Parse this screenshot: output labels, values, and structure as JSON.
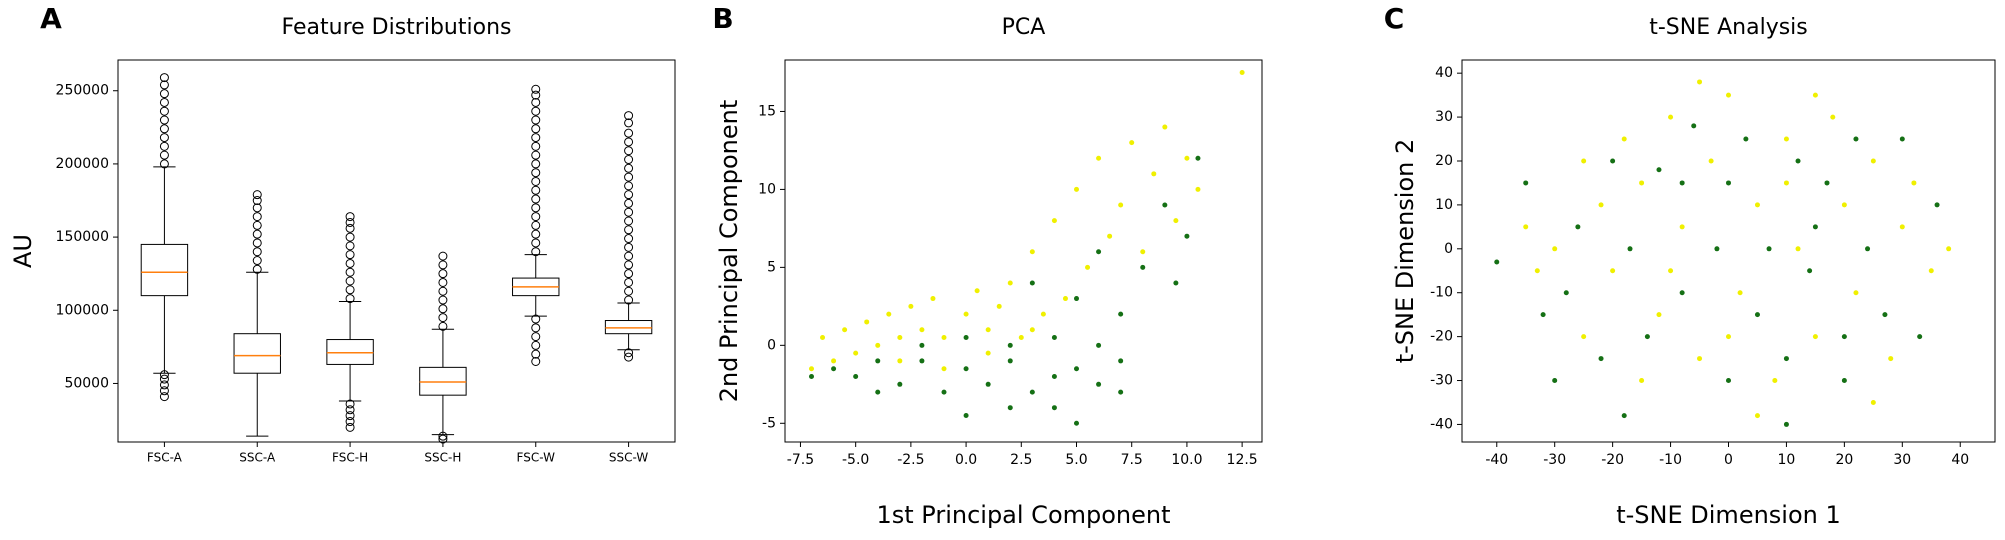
{
  "chart_data": [
    {
      "type": "box",
      "panel_label": "A",
      "title": "Feature Distributions",
      "y_label": "AU",
      "categories": [
        "FSC-A",
        "SSC-A",
        "FSC-H",
        "SSC-H",
        "FSC-W",
        "SSC-W"
      ],
      "boxes": [
        {
          "whisker_low": 57000,
          "q1": 110000,
          "median": 126000,
          "q3": 145000,
          "whisker_high": 198000,
          "fliers": [
            200000,
            206000,
            212000,
            218000,
            224000,
            230000,
            236000,
            242000,
            248000,
            254000,
            259000,
            41000,
            45000,
            49000,
            53000,
            56000
          ]
        },
        {
          "whisker_low": 14000,
          "q1": 57000,
          "median": 69000,
          "q3": 84000,
          "whisker_high": 126000,
          "fliers": [
            128000,
            134000,
            140000,
            146000,
            152000,
            158000,
            164000,
            170000,
            175000,
            179000
          ]
        },
        {
          "whisker_low": 38000,
          "q1": 63000,
          "median": 71000,
          "q3": 80000,
          "whisker_high": 106000,
          "fliers": [
            108000,
            114000,
            120000,
            126000,
            132000,
            138000,
            144000,
            150000,
            156000,
            160000,
            164000,
            20000,
            24000,
            28000,
            32000,
            36000
          ]
        },
        {
          "whisker_low": 15000,
          "q1": 42000,
          "median": 51000,
          "q3": 61000,
          "whisker_high": 87000,
          "fliers": [
            89000,
            95000,
            101000,
            107000,
            113000,
            119000,
            125000,
            131000,
            137000,
            12000,
            14000
          ]
        },
        {
          "whisker_low": 96000,
          "q1": 110000,
          "median": 116000,
          "q3": 122000,
          "whisker_high": 138000,
          "fliers": [
            140000,
            146000,
            152000,
            158000,
            164000,
            170000,
            176000,
            182000,
            188000,
            194000,
            200000,
            206000,
            212000,
            218000,
            224000,
            230000,
            236000,
            242000,
            247000,
            251000,
            65000,
            70000,
            76000,
            82000,
            88000,
            94000
          ]
        },
        {
          "whisker_low": 73000,
          "q1": 84000,
          "median": 88000,
          "q3": 93000,
          "whisker_high": 105000,
          "fliers": [
            107000,
            113000,
            119000,
            125000,
            131000,
            137000,
            143000,
            149000,
            155000,
            161000,
            167000,
            173000,
            179000,
            185000,
            191000,
            197000,
            203000,
            209000,
            215000,
            221000,
            228000,
            233000,
            68000,
            71000
          ]
        }
      ],
      "box_color": "#000000",
      "median_color": "#ff7f0e",
      "ylim": [
        10000,
        271000
      ],
      "yticks": [
        50000,
        100000,
        150000,
        200000,
        250000
      ]
    },
    {
      "type": "scatter",
      "panel_label": "B",
      "title": "PCA",
      "x_label": "1st Principal Component",
      "y_label": "2nd Principal Component",
      "series": [
        {
          "color": "#f0f000",
          "x": [
            -7,
            -6.5,
            -6,
            -5.5,
            -5,
            -4.5,
            -4,
            -3.5,
            -3,
            -2.5,
            -2,
            -1.5,
            -1,
            0,
            0.5,
            1,
            1.5,
            2,
            2.5,
            3,
            3.5,
            4,
            4.5,
            5,
            5.5,
            6,
            6.5,
            7,
            7.5,
            8,
            8.5,
            9,
            9.5,
            10,
            10.5,
            12.5,
            -3,
            -1,
            1,
            3
          ],
          "y": [
            -1.5,
            0.5,
            -1,
            1,
            -0.5,
            1.5,
            0,
            2,
            -1,
            2.5,
            1,
            3,
            0.5,
            2,
            3.5,
            1,
            2.5,
            4,
            0.5,
            6,
            2,
            8,
            3,
            10,
            5,
            12,
            7,
            9,
            13,
            6,
            11,
            14,
            8,
            12,
            10,
            17.5,
            0.5,
            -1.5,
            -0.5,
            1
          ]
        },
        {
          "color": "#157015",
          "x": [
            -7,
            -6,
            -5,
            -4,
            -3,
            -2,
            -1,
            0,
            1,
            2,
            3,
            4,
            5,
            6,
            7,
            -2,
            0,
            2,
            4,
            6,
            3,
            5,
            6,
            7,
            8,
            9,
            9.5,
            10,
            10.5,
            2,
            0,
            4,
            -4,
            5,
            7
          ],
          "y": [
            -2,
            -1.5,
            -2,
            -1,
            -2.5,
            -1,
            -3,
            -1.5,
            -2.5,
            -1,
            -3,
            -2,
            -1.5,
            -2.5,
            -1,
            0,
            0.5,
            0,
            0.5,
            0,
            4,
            3,
            6,
            2,
            5,
            9,
            4,
            7,
            12,
            -4,
            -4.5,
            -4,
            -3,
            -5,
            -3
          ]
        }
      ],
      "xlim": [
        -8.2,
        13.4
      ],
      "xticks": [
        -7.5,
        {
          "value": -5,
          "label": "-5.0"
        },
        -2.5,
        {
          "value": 0,
          "label": "0.0"
        },
        2.5,
        {
          "value": 5,
          "label": "5.0"
        },
        7.5,
        {
          "value": 10,
          "label": "10.0"
        },
        12.5
      ],
      "ylim": [
        -6.2,
        18.3
      ],
      "yticks": [
        -5,
        0,
        5,
        10,
        15
      ]
    },
    {
      "type": "scatter",
      "panel_label": "C",
      "title": "t-SNE Analysis",
      "x_label": "t-SNE Dimension 1",
      "y_label": "t-SNE Dimension 2",
      "series": [
        {
          "color": "#f0f000",
          "x": [
            -35,
            -33,
            -30,
            -25,
            -22,
            -20,
            -18,
            -15,
            -12,
            -10,
            -8,
            -5,
            -3,
            0,
            2,
            5,
            8,
            10,
            12,
            15,
            18,
            20,
            22,
            25,
            28,
            30,
            32,
            35,
            -15,
            -25,
            5,
            15,
            0,
            -10,
            10,
            25,
            -5,
            38
          ],
          "y": [
            5,
            -5,
            0,
            20,
            10,
            -5,
            25,
            15,
            -15,
            30,
            5,
            -25,
            20,
            35,
            -10,
            10,
            -30,
            25,
            0,
            -20,
            30,
            10,
            -10,
            20,
            -25,
            5,
            15,
            -5,
            -30,
            -20,
            -38,
            35,
            -20,
            -5,
            15,
            -35,
            38,
            0
          ]
        },
        {
          "color": "#157015",
          "x": [
            -40,
            -32,
            -28,
            -26,
            -22,
            -20,
            -17,
            -14,
            -12,
            -8,
            -6,
            -2,
            0,
            3,
            5,
            7,
            10,
            12,
            14,
            17,
            20,
            22,
            24,
            27,
            30,
            33,
            -30,
            -18,
            10,
            20,
            -35,
            0,
            15,
            -8,
            36
          ],
          "y": [
            -3,
            -15,
            -10,
            5,
            -25,
            20,
            0,
            -20,
            18,
            -10,
            28,
            0,
            -30,
            25,
            -15,
            0,
            -25,
            20,
            -5,
            15,
            -30,
            25,
            0,
            -15,
            25,
            -20,
            -30,
            -38,
            -40,
            -20,
            15,
            15,
            5,
            15,
            10
          ]
        }
      ],
      "xlim": [
        -46,
        46
      ],
      "xticks": [
        -40,
        -30,
        -20,
        -10,
        0,
        10,
        20,
        30,
        40
      ],
      "ylim": [
        -44,
        43
      ],
      "yticks": [
        -40,
        -30,
        -20,
        -10,
        0,
        10,
        20,
        30,
        40
      ]
    }
  ]
}
